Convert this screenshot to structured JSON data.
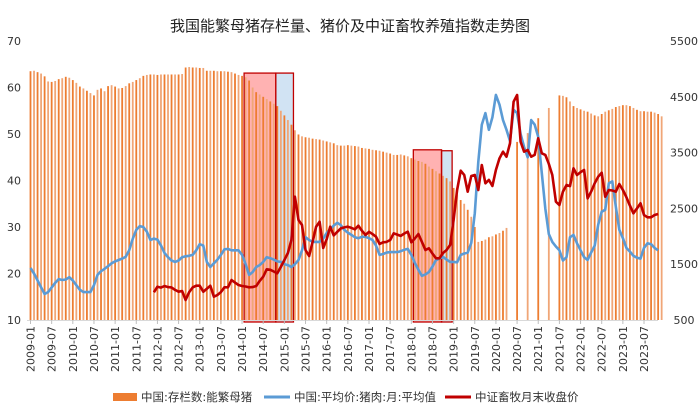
{
  "chart_data": {
    "type": "bar+line",
    "title": "我国能繁母猪存栏量、猪价及中证畜牧养殖指数走势图",
    "x_start": "2009-01",
    "frequency": "monthly",
    "x_tick_labels": [
      "2009-01",
      "2009-07",
      "2010-01",
      "2010-07",
      "2011-01",
      "2011-07",
      "2012-01",
      "2012-07",
      "2013-01",
      "2013-07",
      "2014-01",
      "2014-07",
      "2015-01",
      "2015-07",
      "2016-01",
      "2016-07",
      "2017-01",
      "2017-07",
      "2018-01",
      "2018-07",
      "2019-01",
      "2019-07",
      "2020-01",
      "2020-07",
      "2021-01",
      "2021-07",
      "2022-01",
      "2022-07",
      "2023-01",
      "2023-07"
    ],
    "y_left": {
      "range": [
        10,
        70
      ],
      "ticks": [
        "10",
        "20",
        "30",
        "40",
        "50",
        "60",
        "70"
      ]
    },
    "y_right": {
      "range": [
        500,
        5500
      ],
      "ticks": [
        "500",
        "1500",
        "2500",
        "3500",
        "4500",
        "5500"
      ]
    },
    "grid": false,
    "legend_position": "bottom",
    "series": [
      {
        "name": "中国:存栏数:能繁母猪",
        "type": "bar",
        "axis": "left",
        "color": "#ED7D31",
        "values": [
          63.5,
          63.6,
          63.3,
          63.0,
          62.4,
          61.3,
          61.2,
          61.4,
          61.8,
          62.0,
          62.3,
          62.1,
          61.6,
          61.0,
          60.2,
          59.8,
          59.3,
          58.8,
          58.3,
          59.5,
          59.8,
          59.2,
          60.3,
          60.5,
          60.2,
          59.8,
          59.9,
          60.3,
          60.9,
          61.2,
          61.6,
          62.0,
          62.5,
          62.7,
          62.8,
          62.8,
          62.7,
          62.8,
          62.8,
          62.8,
          62.8,
          62.8,
          62.8,
          62.9,
          64.3,
          64.4,
          64.3,
          64.3,
          64.2,
          64.2,
          63.6,
          63.6,
          63.6,
          63.5,
          63.5,
          63.5,
          63.4,
          63.3,
          63.0,
          62.7,
          62.5,
          62.2,
          61.5,
          60.0,
          59.0,
          58.5,
          58.0,
          57.5,
          57.0,
          56.5,
          56.0,
          55.0,
          54.0,
          53.0,
          52.0,
          50.8,
          49.9,
          49.5,
          49.3,
          49.2,
          49.0,
          48.9,
          48.8,
          48.6,
          48.4,
          48.2,
          48.0,
          47.6,
          47.5,
          47.5,
          47.6,
          47.5,
          47.4,
          47.3,
          47.0,
          46.9,
          46.8,
          46.6,
          46.5,
          46.4,
          46.2,
          46.0,
          45.8,
          45.5,
          45.5,
          45.6,
          45.4,
          45.2,
          44.8,
          44.5,
          44.2,
          44.0,
          43.6,
          43.0,
          42.5,
          42.0,
          41.5,
          41.0,
          40.5,
          39.8,
          38.4,
          37.0,
          35.8,
          35.0,
          33.7,
          32.2,
          30.0,
          26.8,
          27.0,
          27.3,
          27.8,
          28.0,
          28.4,
          28.7,
          29.2,
          29.8,
          null,
          null,
          48.3,
          null,
          null,
          50.2,
          null,
          null,
          53.4,
          null,
          null,
          55.6,
          null,
          null,
          58.3,
          58.2,
          57.9,
          57.0,
          56.0,
          55.6,
          55.3,
          55.0,
          54.8,
          54.4,
          54.0,
          53.8,
          54.3,
          54.8,
          55.1,
          55.4,
          55.8,
          56.0,
          56.2,
          56.2,
          56.0,
          55.6,
          55.2,
          54.9,
          54.9,
          54.8,
          54.8,
          54.6,
          54.3,
          53.8
        ]
      },
      {
        "name": "中国:平均价:猪肉:月:平均值",
        "type": "line",
        "axis": "left",
        "color": "#5B9BD5",
        "values": [
          21.2,
          20.0,
          18.5,
          17.0,
          15.6,
          16.0,
          17.0,
          18.0,
          18.8,
          18.6,
          18.7,
          19.2,
          18.5,
          17.5,
          16.5,
          16.0,
          16.0,
          16.0,
          17.5,
          19.7,
          20.5,
          21.0,
          21.6,
          22.2,
          22.6,
          22.9,
          23.2,
          23.6,
          25.0,
          27.5,
          29.4,
          30.2,
          30.0,
          29.0,
          27.2,
          27.5,
          27.3,
          26.0,
          24.4,
          23.5,
          22.8,
          22.5,
          22.8,
          23.5,
          23.7,
          23.8,
          24.0,
          25.0,
          26.3,
          26.0,
          22.5,
          21.4,
          22.2,
          23.0,
          24.0,
          25.2,
          25.3,
          25.0,
          25.0,
          25.0,
          24.0,
          22.0,
          19.7,
          20.3,
          21.4,
          21.8,
          22.5,
          23.5,
          23.3,
          23.0,
          22.6,
          22.5,
          22.0,
          21.8,
          21.4,
          22.0,
          22.9,
          25.0,
          27.8,
          27.2,
          26.8,
          26.8,
          26.8,
          27.5,
          28.7,
          29.5,
          30.3,
          30.9,
          30.4,
          29.4,
          28.8,
          28.3,
          27.8,
          27.6,
          27.9,
          27.9,
          27.6,
          27.2,
          26.0,
          24.0,
          24.2,
          24.5,
          24.6,
          24.6,
          24.6,
          24.8,
          25.1,
          25.3,
          24.0,
          22.3,
          20.8,
          19.5,
          19.8,
          20.3,
          21.5,
          22.9,
          23.2,
          23.6,
          23.0,
          22.5,
          22.5,
          22.4,
          24.0,
          24.3,
          24.5,
          26.6,
          33.0,
          44.0,
          52.0,
          54.5,
          50.9,
          53.6,
          58.4,
          56.3,
          53.0,
          50.9,
          48.5,
          55.2,
          54.5,
          50.0,
          47.2,
          45.0,
          53.0,
          52.0,
          49.4,
          41.6,
          34.0,
          28.5,
          26.8,
          25.8,
          25.0,
          22.8,
          23.5,
          27.8,
          28.3,
          26.5,
          25.0,
          23.5,
          22.9,
          24.5,
          26.0,
          30.5,
          33.3,
          33.7,
          39.4,
          39.8,
          34.4,
          29.4,
          27.6,
          25.5,
          24.7,
          23.8,
          23.4,
          23.2,
          25.5,
          26.5,
          26.3,
          25.5,
          25.0,
          null
        ]
      },
      {
        "name": "中证畜牧月末收盘价",
        "type": "line",
        "axis": "right",
        "color": "#C00000",
        "values": [
          null,
          null,
          null,
          null,
          null,
          null,
          null,
          null,
          null,
          null,
          null,
          null,
          null,
          null,
          null,
          null,
          null,
          null,
          null,
          null,
          null,
          null,
          null,
          null,
          null,
          null,
          null,
          null,
          null,
          null,
          null,
          null,
          null,
          null,
          null,
          996,
          1097,
          1080,
          1109,
          1090,
          1085,
          1040,
          1007,
          1020,
          858,
          1000,
          1085,
          1115,
          1115,
          1007,
          1060,
          1115,
          918,
          948,
          1000,
          1086,
          1086,
          1217,
          1170,
          1127,
          1110,
          1100,
          1086,
          1090,
          1109,
          1200,
          1276,
          1408,
          1400,
          1370,
          1337,
          1450,
          1575,
          1700,
          1934,
          2710,
          2292,
          2203,
          1755,
          1647,
          1900,
          2172,
          2262,
          1790,
          1950,
          2172,
          2017,
          2080,
          2142,
          2160,
          2172,
          2150,
          2125,
          2190,
          2100,
          2023,
          2080,
          2040,
          1993,
          1862,
          1893,
          1900,
          1934,
          2053,
          2030,
          2008,
          2050,
          2083,
          1893,
          1960,
          2041,
          1900,
          1755,
          1785,
          1690,
          1605,
          1605,
          1700,
          1755,
          1844,
          2292,
          2830,
          3176,
          3100,
          2800,
          3080,
          3098,
          2830,
          3278,
          2950,
          3010,
          2901,
          3188,
          3398,
          3517,
          3427,
          3667,
          4412,
          4532,
          3695,
          3517,
          3547,
          3427,
          3458,
          3756,
          3488,
          3458,
          3300,
          3098,
          2620,
          2561,
          2800,
          2919,
          2900,
          3218,
          3098,
          3150,
          3188,
          2680,
          2800,
          2950,
          3068,
          3140,
          2710,
          2830,
          2820,
          2800,
          2937,
          2830,
          2700,
          2550,
          2412,
          2500,
          2591,
          2382,
          2340,
          2340,
          2382,
          2400,
          null
        ]
      }
    ],
    "highlight_regions": [
      {
        "kind": "decline",
        "from": "2014-02",
        "to": "2014-11",
        "top_left_axis": 63.1,
        "fill": "#FF0000",
        "stroke": "#C00000"
      },
      {
        "kind": "lag",
        "from": "2014-11",
        "to": "2015-04",
        "top_left_axis": 63.1,
        "fill": "#BDD7EE",
        "stroke": "#C00000"
      },
      {
        "kind": "decline",
        "from": "2018-02",
        "to": "2018-10",
        "top_left_axis": 46.6,
        "fill": "#FF0000",
        "stroke": "#C00000"
      },
      {
        "kind": "lag",
        "from": "2018-10",
        "to": "2019-01",
        "top_left_axis": 46.4,
        "fill": "#BDD7EE",
        "stroke": "#C00000"
      }
    ]
  }
}
